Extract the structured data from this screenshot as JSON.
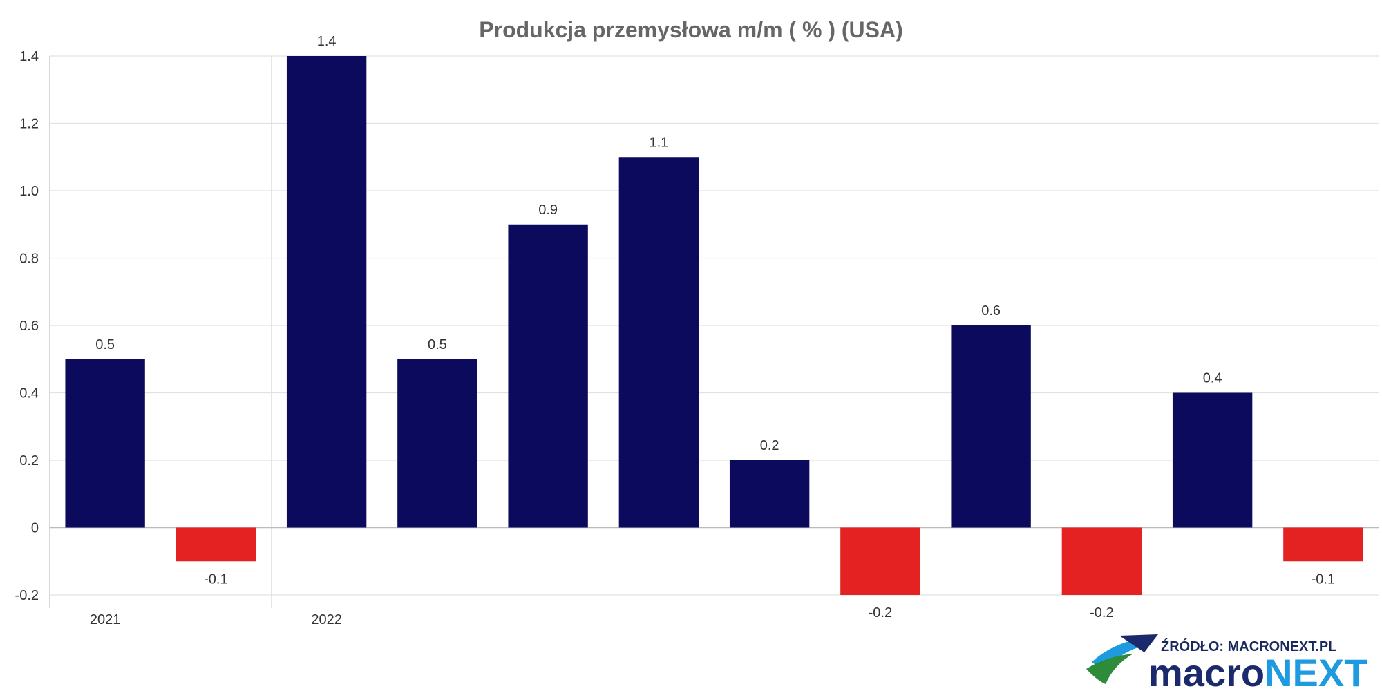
{
  "chart_data": {
    "type": "bar",
    "title": "Produkcja przemysłowa m/m ( % ) (USA)",
    "xlabel": "",
    "ylabel": "",
    "ylim": [
      -0.2,
      1.4
    ],
    "yticks": [
      "1.4",
      "1.2",
      "1.0",
      "0.8",
      "0.6",
      "0.4",
      "0.2",
      "0",
      "-0.2"
    ],
    "year_labels": [
      "2021",
      "2022"
    ],
    "values": [
      0.5,
      -0.1,
      1.4,
      0.5,
      0.9,
      1.1,
      0.2,
      -0.2,
      0.6,
      -0.2,
      0.4,
      -0.1
    ],
    "value_labels": [
      "0.5",
      "-0.1",
      "1.4",
      "0.5",
      "0.9",
      "1.1",
      "0.2",
      "-0.2",
      "0.6",
      "-0.2",
      "0.4",
      "-0.1"
    ],
    "colors": {
      "positive": "#0b0a5c",
      "negative": "#e52222"
    },
    "grid": true
  },
  "source": {
    "label": "ŹRÓDŁO: MACRONEXT.PL",
    "brand_part1": "macro",
    "brand_part2": "NEXT"
  }
}
